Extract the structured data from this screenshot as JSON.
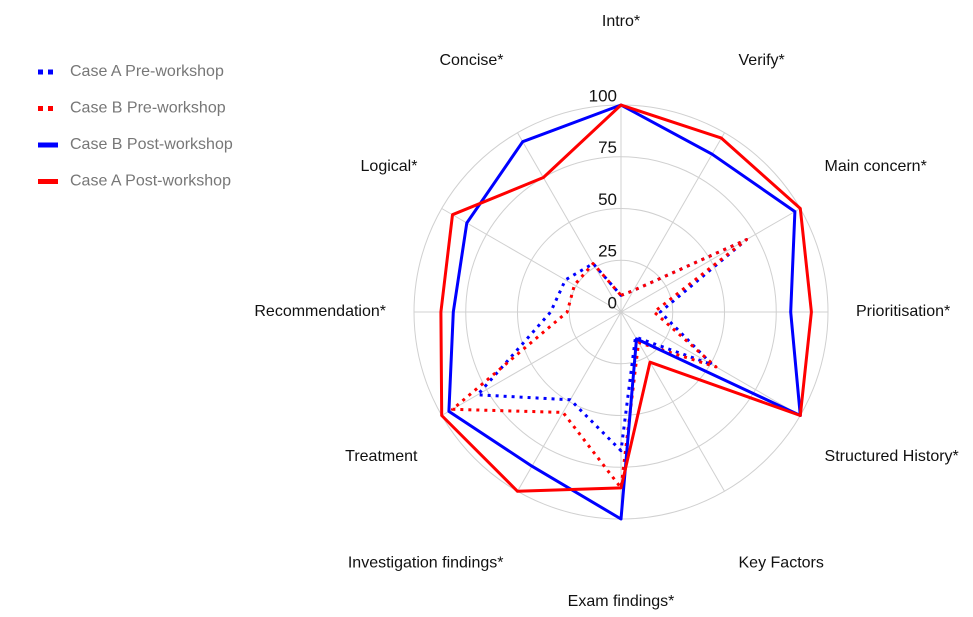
{
  "chart_data": {
    "type": "radar",
    "categories": [
      "Intro*",
      "Verify*",
      "Main concern*",
      "Prioritisation*",
      "Structured History*",
      "Key Factors",
      "Exam findings*",
      "Investigation findings*",
      "Treatment",
      "Recommendation*",
      "Logical*",
      "Concise*"
    ],
    "rlim": [
      0,
      100
    ],
    "rticks": [
      0,
      25,
      50,
      75,
      100
    ],
    "grid": true,
    "legend": "upper left",
    "series": [
      {
        "name": "Case A Pre-workshop",
        "color": "#0000ff",
        "style": "dotted",
        "values": [
          8,
          12,
          70,
          19,
          51,
          14,
          67,
          49,
          80,
          34,
          31,
          27
        ]
      },
      {
        "name": "Case B Pre-workshop",
        "color": "#ff0000",
        "style": "dotted",
        "values": [
          8,
          12,
          70,
          16,
          53,
          17,
          85,
          56,
          94,
          26,
          26,
          27
        ]
      },
      {
        "name": "Case B Post-workshop",
        "color": "#0000ff",
        "style": "solid",
        "values": [
          100,
          88,
          97,
          82,
          100,
          15,
          100,
          86,
          96,
          81,
          86,
          95
        ]
      },
      {
        "name": "Case A Post-workshop",
        "color": "#ff0000",
        "style": "solid",
        "values": [
          100,
          97,
          100,
          92,
          100,
          28,
          85,
          100,
          100,
          87,
          94,
          75
        ]
      }
    ]
  }
}
